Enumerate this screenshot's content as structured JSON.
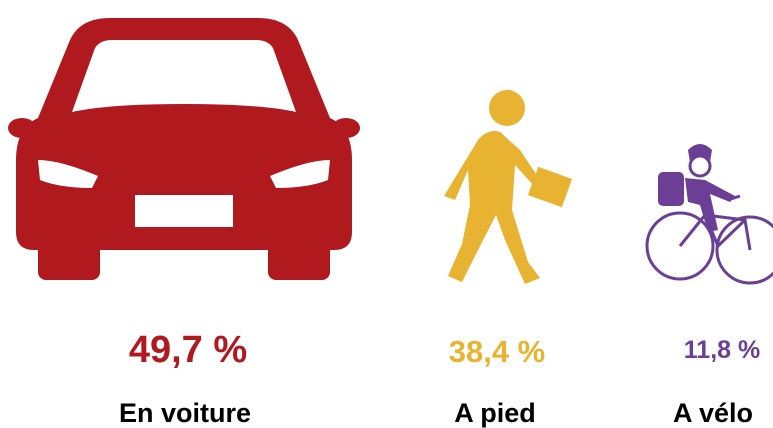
{
  "items": [
    {
      "value": "49,7 %",
      "label": "En voiture"
    },
    {
      "value": "38,4 %",
      "label": "A pied"
    },
    {
      "value": "11,8 %",
      "label": "A vélo"
    }
  ]
}
